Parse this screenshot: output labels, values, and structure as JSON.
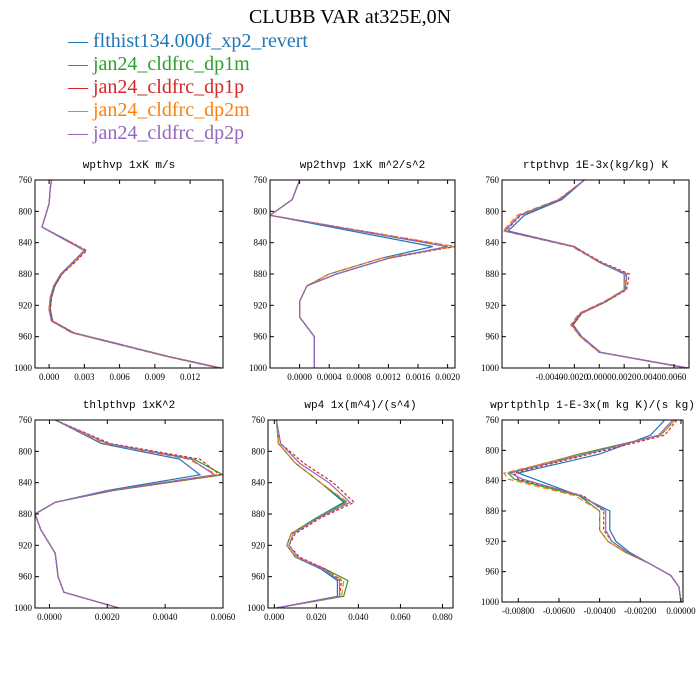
{
  "title": "CLUBB VAR at325E,0N",
  "legend": [
    {
      "label": "flthist134.000f_xp2_revert",
      "color": "#1f77b4",
      "dash": ""
    },
    {
      "label": "jan24_cldfrc_dp1m",
      "color": "#2ca02c",
      "dash": ""
    },
    {
      "label": "jan24_cldfrc_dp1p",
      "color": "#d62728",
      "dash": "3,2"
    },
    {
      "label": "jan24_cldfrc_dp2m",
      "color": "#ff7f0e",
      "dash": "6,3"
    },
    {
      "label": "jan24_cldfrc_dp2p",
      "color": "#9467bd",
      "dash": ""
    }
  ],
  "chart_data": [
    {
      "type": "line",
      "title": "wpthvp  1xK m/s",
      "xlim": [
        -0.0012,
        0.0148
      ],
      "ylim": [
        760,
        1000
      ],
      "xticks": [
        0,
        0.003,
        0.006,
        0.009,
        0.012
      ],
      "xtick_labels": [
        "0.000",
        "0.003",
        "0.006",
        "0.009",
        "0.012"
      ],
      "yticks": [
        760,
        800,
        840,
        880,
        920,
        960,
        1000
      ],
      "y": [
        760,
        770,
        790,
        805,
        820,
        835,
        850,
        865,
        880,
        895,
        910,
        925,
        940,
        955,
        970,
        985,
        1000
      ],
      "series": [
        {
          "values": [
            0.0002,
            0.0001,
            0.0,
            -0.0003,
            -0.0006,
            0.0012,
            0.003,
            0.002,
            0.001,
            0.0004,
            0.0001,
            0.0,
            0.0002,
            0.002,
            0.006,
            0.01,
            0.0145
          ]
        },
        {
          "values": [
            0.0002,
            0.0001,
            0.0,
            -0.0003,
            -0.0006,
            0.0013,
            0.0031,
            0.0021,
            0.0011,
            0.0005,
            0.0002,
            0.0001,
            0.0003,
            0.0021,
            0.0061,
            0.0101,
            0.0146
          ]
        },
        {
          "values": [
            0.0002,
            0.0001,
            0.0,
            -0.0003,
            -0.0006,
            0.0013,
            0.0032,
            0.0022,
            0.0011,
            0.0005,
            0.0002,
            0.0001,
            0.0003,
            0.0021,
            0.0061,
            0.0101,
            0.0146
          ]
        },
        {
          "values": [
            0.0002,
            0.0001,
            0.0,
            -0.0003,
            -0.0006,
            0.0012,
            0.0031,
            0.0021,
            0.001,
            0.0004,
            0.0001,
            0.0,
            0.0002,
            0.0019,
            0.0059,
            0.0099,
            0.0144
          ]
        },
        {
          "values": [
            0.0002,
            0.0001,
            0.0,
            -0.0003,
            -0.0006,
            0.0012,
            0.003,
            0.002,
            0.001,
            0.0004,
            0.0001,
            0.0,
            0.0002,
            0.002,
            0.006,
            0.01,
            0.0145
          ]
        }
      ]
    },
    {
      "type": "line",
      "title": "wp2thvp  1xK m^2/s^2",
      "xlim": [
        -0.0004,
        0.0021
      ],
      "ylim": [
        760,
        1000
      ],
      "xticks": [
        0,
        0.0004,
        0.0008,
        0.0012,
        0.0016,
        0.002
      ],
      "xtick_labels": [
        "0.0000",
        "0.0004",
        "0.0008",
        "0.0012",
        "0.0016",
        "0.0020"
      ],
      "yticks": [
        760,
        800,
        840,
        880,
        920,
        960,
        1000
      ],
      "y": [
        760,
        785,
        805,
        845,
        860,
        880,
        895,
        915,
        935,
        960,
        985,
        1000
      ],
      "series": [
        {
          "values": [
            0.0,
            -0.0001,
            -0.0004,
            0.0018,
            0.0011,
            0.0004,
            0.0001,
            0.0,
            0.0,
            0.0002,
            0.0002,
            0.0002
          ]
        },
        {
          "values": [
            0.0,
            -0.0001,
            -0.0004,
            0.002,
            0.0012,
            0.0005,
            0.0001,
            0.0,
            0.0,
            0.0002,
            0.0002,
            0.0002
          ]
        },
        {
          "values": [
            0.0,
            -0.0001,
            -0.0004,
            0.0021,
            0.0012,
            0.0005,
            0.0001,
            0.0,
            0.0,
            0.0002,
            0.0002,
            0.0002
          ]
        },
        {
          "values": [
            0.0,
            -0.0001,
            -0.0004,
            0.0021,
            0.0011,
            0.0004,
            0.0001,
            0.0,
            0.0,
            0.0002,
            0.0002,
            0.0002
          ]
        },
        {
          "values": [
            0.0,
            -0.0001,
            -0.0004,
            0.002,
            0.0012,
            0.0005,
            0.0001,
            0.0,
            0.0,
            0.0002,
            0.0002,
            0.0002
          ]
        }
      ]
    },
    {
      "type": "line",
      "title": "rtpthvp  1E-3x(kg/kg) K",
      "xlim": [
        -0.0078,
        0.0072
      ],
      "ylim": [
        760,
        1000
      ],
      "xticks": [
        -0.004,
        -0.002,
        0,
        0.002,
        0.004,
        0.006
      ],
      "xtick_labels": [
        "-0.0040",
        "-0.0020",
        "0.0000",
        "0.0020",
        "0.0040",
        "0.0060"
      ],
      "yticks": [
        760,
        800,
        840,
        880,
        920,
        960,
        1000
      ],
      "y": [
        760,
        785,
        805,
        825,
        845,
        865,
        880,
        900,
        915,
        930,
        945,
        960,
        980,
        1000
      ],
      "series": [
        {
          "values": [
            -0.0012,
            -0.003,
            -0.006,
            -0.0073,
            -0.002,
            0.0,
            0.002,
            0.002,
            0.0005,
            -0.0015,
            -0.0022,
            -0.0015,
            0.0,
            0.007
          ]
        },
        {
          "values": [
            -0.0012,
            -0.0032,
            -0.0064,
            -0.0076,
            -0.0021,
            0.0001,
            0.0022,
            0.0021,
            0.0006,
            -0.0014,
            -0.0021,
            -0.0014,
            0.0001,
            0.0071
          ]
        },
        {
          "values": [
            -0.0012,
            -0.0031,
            -0.0063,
            -0.0075,
            -0.002,
            0.0002,
            0.0024,
            0.0022,
            0.0006,
            -0.0014,
            -0.0021,
            -0.0014,
            0.0001,
            0.0071
          ]
        },
        {
          "values": [
            -0.0012,
            -0.0033,
            -0.0066,
            -0.0077,
            -0.0022,
            0.0,
            0.0021,
            0.002,
            0.0004,
            -0.0016,
            -0.0023,
            -0.0015,
            0.0,
            0.007
          ]
        },
        {
          "values": [
            -0.0012,
            -0.0032,
            -0.0064,
            -0.0076,
            -0.0021,
            0.0001,
            0.0022,
            0.0021,
            0.0005,
            -0.0015,
            -0.0022,
            -0.0014,
            0.0001,
            0.0071
          ]
        }
      ]
    },
    {
      "type": "line",
      "title": "thlpthvp  1xK^2",
      "xlim": [
        -0.0005,
        0.006
      ],
      "ylim": [
        760,
        1000
      ],
      "xticks": [
        0,
        0.002,
        0.004,
        0.006
      ],
      "xtick_labels": [
        "0.0000",
        "0.0020",
        "0.0040",
        "0.0060"
      ],
      "yticks": [
        760,
        800,
        840,
        880,
        920,
        960,
        1000
      ],
      "y": [
        760,
        790,
        810,
        830,
        850,
        865,
        880,
        900,
        930,
        960,
        980,
        1000
      ],
      "series": [
        {
          "values": [
            0.0002,
            0.0018,
            0.0045,
            0.0052,
            0.002,
            0.0002,
            -0.0005,
            -0.0003,
            0.0002,
            0.0003,
            0.0005,
            0.0024
          ]
        },
        {
          "values": [
            0.0002,
            0.002,
            0.005,
            0.006,
            0.0022,
            0.0002,
            -0.0005,
            -0.0003,
            0.0002,
            0.0003,
            0.0005,
            0.0024
          ]
        },
        {
          "values": [
            0.0002,
            0.0021,
            0.0052,
            0.0059,
            0.0022,
            0.0002,
            -0.0005,
            -0.0003,
            0.0002,
            0.0003,
            0.0005,
            0.0024
          ]
        },
        {
          "values": [
            0.0002,
            0.0019,
            0.0048,
            0.0058,
            0.0021,
            0.0002,
            -0.0005,
            -0.0003,
            0.0002,
            0.0003,
            0.0005,
            0.0024
          ]
        },
        {
          "values": [
            0.0002,
            0.002,
            0.0049,
            0.0057,
            0.0021,
            0.0002,
            -0.0005,
            -0.0003,
            0.0002,
            0.0003,
            0.0005,
            0.0024
          ]
        }
      ]
    },
    {
      "type": "line",
      "title": "wp4  1x(m^4)/(s^4)",
      "xlim": [
        -0.003,
        0.085
      ],
      "ylim": [
        760,
        1000
      ],
      "xticks": [
        0,
        0.02,
        0.04,
        0.06,
        0.08
      ],
      "xtick_labels": [
        "0.000",
        "0.020",
        "0.040",
        "0.060",
        "0.080"
      ],
      "yticks": [
        760,
        800,
        840,
        880,
        920,
        960,
        1000
      ],
      "y": [
        760,
        790,
        815,
        840,
        865,
        885,
        905,
        920,
        935,
        950,
        965,
        985,
        1000
      ],
      "series": [
        {
          "values": [
            0.001,
            0.002,
            0.01,
            0.022,
            0.033,
            0.02,
            0.008,
            0.006,
            0.01,
            0.022,
            0.03,
            0.03,
            0.001
          ]
        },
        {
          "values": [
            0.001,
            0.002,
            0.01,
            0.022,
            0.034,
            0.02,
            0.008,
            0.006,
            0.01,
            0.024,
            0.035,
            0.033,
            0.001
          ]
        },
        {
          "values": [
            0.001,
            0.003,
            0.014,
            0.028,
            0.038,
            0.022,
            0.01,
            0.007,
            0.012,
            0.024,
            0.032,
            0.031,
            0.001
          ]
        },
        {
          "values": [
            0.001,
            0.002,
            0.01,
            0.022,
            0.035,
            0.021,
            0.008,
            0.006,
            0.01,
            0.023,
            0.033,
            0.032,
            0.001
          ]
        },
        {
          "values": [
            0.001,
            0.003,
            0.012,
            0.026,
            0.036,
            0.021,
            0.009,
            0.007,
            0.011,
            0.023,
            0.031,
            0.031,
            0.001
          ]
        }
      ]
    },
    {
      "type": "line",
      "title": "wprtpthlp  1-E-3x(m kg K)/(s kg)",
      "xlim": [
        -0.0088,
        0.0001
      ],
      "ylim": [
        760,
        1000
      ],
      "xticks": [
        -0.008,
        -0.006,
        -0.004,
        -0.002,
        0
      ],
      "xtick_labels": [
        "-0.00800",
        "-0.00600",
        "-0.00400",
        "-0.00200",
        "0.00000"
      ],
      "yticks": [
        760,
        800,
        840,
        880,
        920,
        960,
        1000
      ],
      "y": [
        760,
        780,
        805,
        830,
        838,
        860,
        880,
        905,
        920,
        935,
        950,
        965,
        980,
        1000
      ],
      "series": [
        {
          "values": [
            -0.0008,
            -0.0015,
            -0.004,
            -0.008,
            -0.0072,
            -0.005,
            -0.0035,
            -0.0035,
            -0.0032,
            -0.0025,
            -0.0015,
            -0.0005,
            -0.0001,
            0.0
          ]
        },
        {
          "values": [
            -0.0003,
            -0.001,
            -0.005,
            -0.0085,
            -0.0082,
            -0.005,
            -0.004,
            -0.004,
            -0.0036,
            -0.0027,
            -0.0015,
            -0.0005,
            -0.0001,
            0.0
          ]
        },
        {
          "values": [
            -0.0002,
            -0.0008,
            -0.0045,
            -0.0082,
            -0.008,
            -0.0048,
            -0.0038,
            -0.0038,
            -0.0034,
            -0.0026,
            -0.0015,
            -0.0005,
            -0.0001,
            0.0
          ]
        },
        {
          "values": [
            -0.0003,
            -0.001,
            -0.0048,
            -0.0087,
            -0.0085,
            -0.0052,
            -0.004,
            -0.004,
            -0.0036,
            -0.0027,
            -0.0015,
            -0.0005,
            -0.0001,
            0.0
          ]
        },
        {
          "values": [
            -0.0004,
            -0.0011,
            -0.0047,
            -0.0084,
            -0.0078,
            -0.0049,
            -0.0037,
            -0.0037,
            -0.0034,
            -0.0026,
            -0.0015,
            -0.0005,
            -0.0001,
            0.0
          ]
        }
      ]
    }
  ]
}
